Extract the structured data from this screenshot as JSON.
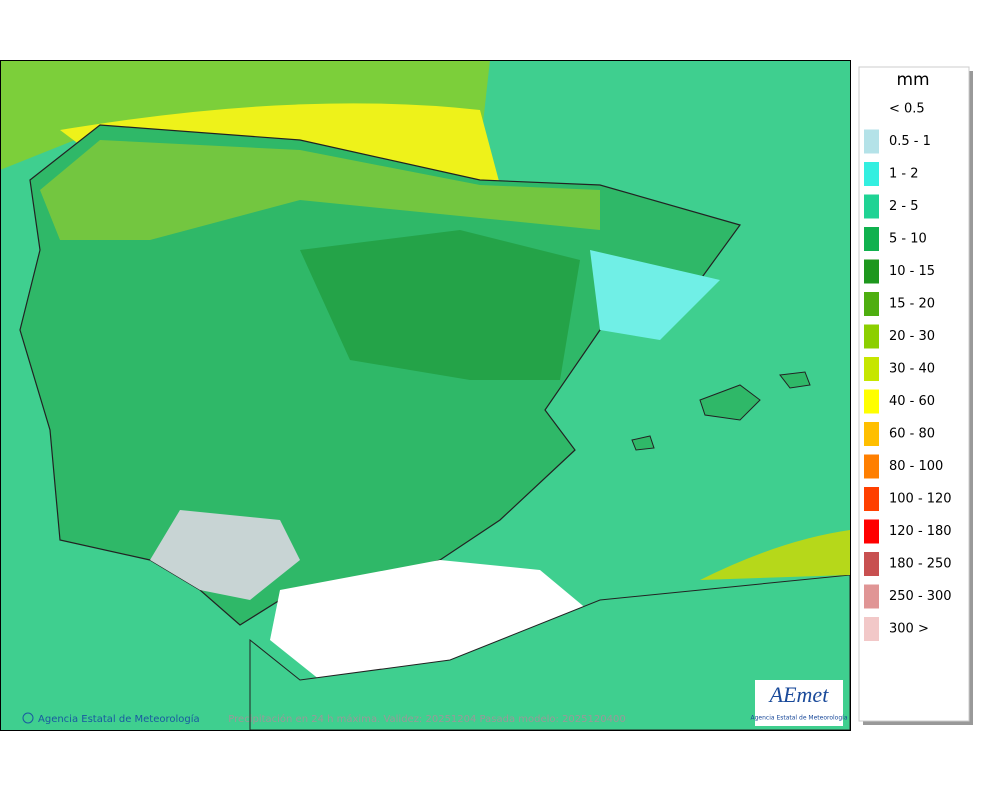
{
  "legend": {
    "title": "mm",
    "items": [
      {
        "label": "< 0.5",
        "color": "#ffffff"
      },
      {
        "label": "0.5 - 1",
        "color": "#b4e2e8"
      },
      {
        "label": "1 - 2",
        "color": "#33efe0"
      },
      {
        "label": "2 - 5",
        "color": "#1fd394"
      },
      {
        "label": "5 - 10",
        "color": "#10b14e"
      },
      {
        "label": "10 - 15",
        "color": "#1e971e"
      },
      {
        "label": "15 - 20",
        "color": "#4eae10"
      },
      {
        "label": "20 - 30",
        "color": "#8ccf00"
      },
      {
        "label": "30 - 40",
        "color": "#c6e600"
      },
      {
        "label": "40 - 60",
        "color": "#ffff00"
      },
      {
        "label": "60 - 80",
        "color": "#ffbf00"
      },
      {
        "label": "80 - 100",
        "color": "#ff7f00"
      },
      {
        "label": "100 - 120",
        "color": "#ff4000"
      },
      {
        "label": "120 - 180",
        "color": "#ff0000"
      },
      {
        "label": "180 - 250",
        "color": "#c85050"
      },
      {
        "label": "250 - 300",
        "color": "#e09595"
      },
      {
        "label": "300 >",
        "color": "#f2c8c8"
      }
    ]
  },
  "footer": {
    "credit": "Agencia Estatal de Meteorología",
    "caption": "Precipitación en 24 h máxima. Validez: 20251204 Pasada modelo: 2025120400"
  },
  "logo": {
    "name": "AEmet",
    "subtitle": "Agencia Estatal de Meteorología"
  }
}
